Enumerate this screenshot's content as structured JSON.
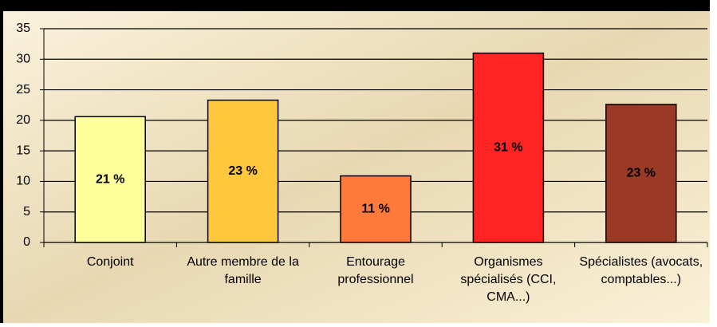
{
  "chart_data": {
    "type": "bar",
    "categories": [
      "Conjoint",
      "Autre membre de la famille",
      "Entourage professionnel",
      "Organismes spécialisés (CCI, CMA...)",
      "Spécialistes (avocats, comptables...)"
    ],
    "values": [
      20.6,
      23.3,
      10.9,
      31,
      22.6
    ],
    "value_labels": [
      "21 %",
      "23 %",
      "11 %",
      "31 %",
      "23 %"
    ],
    "colors": [
      "#ffff9c",
      "#ffc83c",
      "#ff7a3a",
      "#ff2424",
      "#9a3a26"
    ],
    "ylim": [
      0,
      35
    ],
    "yticks": [
      0,
      5,
      10,
      15,
      20,
      25,
      30,
      35
    ],
    "grid": true
  }
}
